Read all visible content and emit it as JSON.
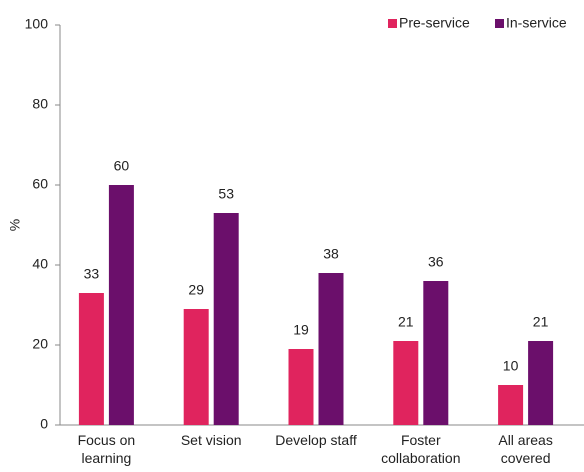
{
  "chart_data": {
    "type": "bar",
    "y_label": "%",
    "categories": [
      "Focus on learning",
      "Set vision",
      "Develop staff",
      "Foster collaboration",
      "All areas covered"
    ],
    "series": [
      {
        "name": "Pre-service",
        "color": "#e0245e",
        "values": [
          33,
          29,
          19,
          21,
          10
        ]
      },
      {
        "name": "In-service",
        "color": "#6b0f6b",
        "values": [
          60,
          53,
          38,
          36,
          21
        ]
      }
    ],
    "ylim": [
      0,
      100
    ],
    "yticks": [
      0,
      20,
      40,
      60,
      80,
      100
    ],
    "legend": "top-right"
  }
}
